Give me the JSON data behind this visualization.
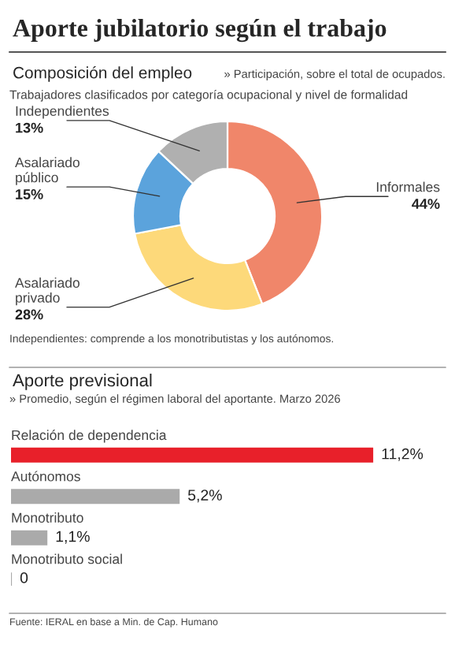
{
  "chart_data": [
    {
      "type": "donut",
      "title": "Aporte jubilatorio según el trabajo",
      "subtitle": "Composición del empleo",
      "annotations": [
        "» Participación, sobre el total de ocupados.",
        "Trabajadores clasificados por categoría ocupacional y nivel de formalidad",
        "Independientes: comprende a los monotributistas y los autónomos."
      ],
      "categories": [
        "Informales",
        "Asalariado privado",
        "Asalariado público",
        "Independientes"
      ],
      "values": [
        44,
        28,
        15,
        13
      ],
      "colors": [
        "#f0866a",
        "#fdd97a",
        "#5ba3dc",
        "#b0b0b0"
      ],
      "value_labels": [
        "44%",
        "28%",
        "15%",
        "13%"
      ],
      "legend": false
    },
    {
      "type": "bar",
      "orientation": "horizontal",
      "title": "Aporte previsional",
      "subtitle": "» Promedio, según el régimen laboral del aportante. Marzo 2026",
      "annotations": [
        "Fuente: IERAL en base a Min. de Cap. Humano"
      ],
      "categories": [
        "Relación de dependencia",
        "Autónomos",
        "Monotributo",
        "Monotributo social"
      ],
      "values": [
        11.2,
        5.2,
        1.1,
        0
      ],
      "colors": [
        "#e8202a",
        "#aaaaaa",
        "#aaaaaa",
        "#aaaaaa"
      ],
      "value_labels": [
        "11,2%",
        "5,2%",
        "1,1%",
        "0"
      ],
      "legend": false
    }
  ]
}
